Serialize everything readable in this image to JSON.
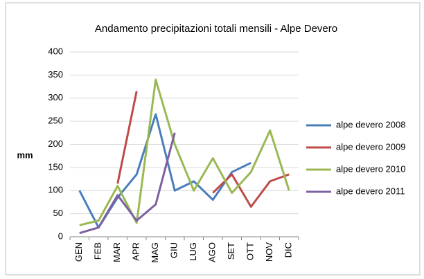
{
  "chart_data": {
    "type": "line",
    "title": "Andamento precipitazioni totali mensili - Alpe Devero",
    "y_label": "mm",
    "categories": [
      "GEN",
      "FEB",
      "MAR",
      "APR",
      "MAG",
      "GIU",
      "LUG",
      "AGO",
      "SET",
      "OTT",
      "NOV",
      "DIC"
    ],
    "series": [
      {
        "name": "alpe devero 2008",
        "color": "#4a7ebb",
        "values": [
          100,
          20,
          85,
          135,
          265,
          100,
          120,
          80,
          140,
          160,
          null,
          null
        ]
      },
      {
        "name": "alpe devero 2009",
        "color": "#be4b48",
        "values": [
          null,
          null,
          115,
          315,
          null,
          null,
          null,
          95,
          135,
          65,
          120,
          135
        ]
      },
      {
        "name": "alpe devero 2010",
        "color": "#98b954",
        "values": [
          25,
          35,
          110,
          30,
          340,
          200,
          100,
          170,
          95,
          140,
          230,
          100
        ]
      },
      {
        "name": "alpe devero 2011",
        "color": "#7d60a0",
        "values": [
          8,
          20,
          90,
          35,
          70,
          225,
          null,
          null,
          null,
          null,
          null,
          null
        ]
      }
    ],
    "ylim": [
      0,
      400
    ],
    "yticks": [
      0,
      50,
      100,
      150,
      200,
      250,
      300,
      350,
      400
    ],
    "grid": true,
    "legend": "right"
  }
}
